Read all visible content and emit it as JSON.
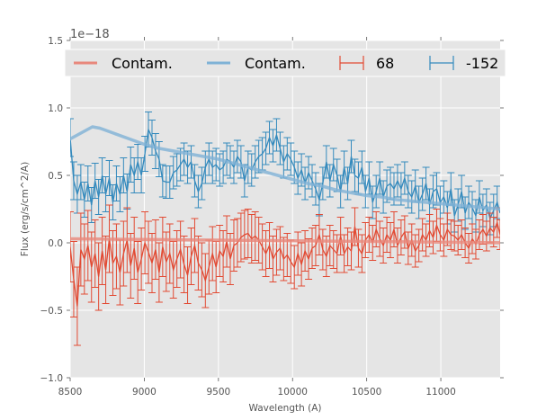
{
  "chart_data": {
    "type": "line",
    "title": "",
    "xlabel": "Wavelength (A)",
    "ylabel": "Flux (erg/s/cm^2/A)",
    "y_offset_label": "1e−18",
    "xlim": [
      8500,
      11400
    ],
    "ylim": [
      -1.0,
      1.5
    ],
    "x_ticks": [
      8500,
      9000,
      9500,
      10000,
      10500,
      11000
    ],
    "x_tick_labels": [
      "8500",
      "9000",
      "9500",
      "10000",
      "10500",
      "11000"
    ],
    "y_ticks": [
      -1.0,
      -0.5,
      0.0,
      0.5,
      1.0,
      1.5
    ],
    "y_tick_labels": [
      "−1.0",
      "−0.5",
      "0.0",
      "0.5",
      "1.0",
      "1.5"
    ],
    "grid": true,
    "legend_position": "top",
    "legend": [
      {
        "label": "Contam.",
        "kind": "line",
        "color": "#e8887c"
      },
      {
        "label": "Contam.",
        "kind": "line",
        "color": "#7fb2d6"
      },
      {
        "label": "68",
        "kind": "errorbar",
        "color": "#e24a33"
      },
      {
        "label": "-152",
        "kind": "errorbar",
        "color": "#348abd"
      }
    ],
    "colors": {
      "axes_bg": "#e5e5e5",
      "grid": "#ffffff",
      "red": "#e24a33",
      "blue": "#348abd",
      "red_contam": "#e8887c",
      "blue_contam": "#7fb2d6",
      "legend_bg": "#e5e5e5"
    },
    "series": [
      {
        "name": "Contam. (68)",
        "kind": "line",
        "x": [
          8500,
          8700,
          8900,
          9100,
          9300,
          9500,
          9700,
          9900,
          10100,
          10300,
          10500,
          10700,
          10900,
          11100,
          11300,
          11400
        ],
        "y": [
          0.03,
          0.028,
          0.026,
          0.024,
          0.022,
          0.02,
          0.018,
          0.016,
          0.014,
          0.012,
          0.01,
          0.008,
          0.006,
          0.004,
          0.002,
          0.001
        ]
      },
      {
        "name": "Contam. (-152)",
        "kind": "line",
        "x": [
          8500,
          8550,
          8600,
          8650,
          8700,
          8750,
          8800,
          8900,
          9000,
          9100,
          9200,
          9300,
          9400,
          9500,
          9600,
          9700,
          9800,
          9900,
          10000,
          10100,
          10200,
          10300,
          10400,
          10500,
          10600,
          10700,
          10800,
          10900,
          11000,
          11100,
          11200,
          11300,
          11400
        ],
        "y": [
          0.77,
          0.8,
          0.83,
          0.86,
          0.85,
          0.83,
          0.81,
          0.77,
          0.73,
          0.7,
          0.68,
          0.66,
          0.64,
          0.62,
          0.59,
          0.56,
          0.53,
          0.5,
          0.47,
          0.44,
          0.42,
          0.39,
          0.37,
          0.35,
          0.34,
          0.32,
          0.31,
          0.3,
          0.29,
          0.28,
          0.27,
          0.26,
          0.25
        ]
      },
      {
        "name": "68",
        "kind": "errorbar",
        "x": [
          8500,
          8524,
          8548,
          8572,
          8596,
          8620,
          8644,
          8668,
          8692,
          8716,
          8740,
          8764,
          8788,
          8812,
          8836,
          8860,
          8884,
          8908,
          8932,
          8956,
          8980,
          9004,
          9028,
          9052,
          9076,
          9100,
          9124,
          9148,
          9172,
          9196,
          9220,
          9244,
          9268,
          9292,
          9316,
          9340,
          9364,
          9388,
          9412,
          9436,
          9460,
          9484,
          9508,
          9532,
          9556,
          9580,
          9604,
          9628,
          9652,
          9676,
          9700,
          9724,
          9748,
          9772,
          9796,
          9820,
          9844,
          9868,
          9892,
          9916,
          9940,
          9964,
          9988,
          10012,
          10036,
          10060,
          10084,
          10108,
          10132,
          10156,
          10180,
          10204,
          10228,
          10252,
          10276,
          10300,
          10324,
          10348,
          10372,
          10396,
          10420,
          10444,
          10468,
          10492,
          10516,
          10540,
          10564,
          10588,
          10612,
          10636,
          10660,
          10684,
          10708,
          10732,
          10756,
          10780,
          10804,
          10828,
          10852,
          10876,
          10900,
          10924,
          10948,
          10972,
          10996,
          11020,
          11044,
          11068,
          11092,
          11116,
          11140,
          11164,
          11188,
          11212,
          11236,
          11260,
          11284,
          11308,
          11332,
          11356,
          11380,
          11400
        ],
        "y": [
          -0.03,
          -0.27,
          -0.47,
          -0.05,
          -0.12,
          -0.02,
          -0.18,
          -0.08,
          -0.25,
          -0.06,
          -0.2,
          0.03,
          -0.15,
          -0.1,
          -0.22,
          -0.08,
          0.02,
          -0.17,
          -0.04,
          -0.22,
          -0.12,
          0.0,
          -0.07,
          -0.15,
          -0.05,
          -0.22,
          -0.03,
          -0.14,
          -0.08,
          -0.2,
          -0.12,
          -0.05,
          -0.16,
          -0.24,
          -0.1,
          -0.02,
          -0.15,
          -0.2,
          -0.28,
          -0.18,
          -0.08,
          -0.18,
          -0.06,
          -0.1,
          0.01,
          -0.12,
          -0.02,
          0.0,
          0.04,
          0.06,
          0.07,
          0.03,
          0.05,
          0.02,
          -0.03,
          -0.08,
          -0.02,
          -0.12,
          -0.07,
          -0.04,
          -0.12,
          -0.09,
          -0.14,
          -0.18,
          -0.08,
          -0.16,
          -0.06,
          -0.12,
          -0.04,
          -0.02,
          0.06,
          -0.05,
          -0.1,
          -0.02,
          -0.05,
          -0.08,
          0.05,
          -0.08,
          -0.03,
          -0.06,
          0.12,
          -0.04,
          -0.08,
          0.02,
          0.06,
          0.0,
          0.1,
          0.03,
          -0.02,
          0.06,
          0.02,
          0.1,
          -0.02,
          0.04,
          0.08,
          -0.04,
          0.02,
          -0.06,
          -0.02,
          0.06,
          0.02,
          0.09,
          0.04,
          0.13,
          0.06,
          0.02,
          0.1,
          0.06,
          0.05,
          0.02,
          0.06,
          0.0,
          -0.04,
          0.03,
          -0.01,
          0.06,
          0.1,
          0.05,
          0.11,
          0.08,
          0.15,
          0.06
        ],
        "yerr": [
          0.26,
          0.28,
          0.29,
          0.27,
          0.26,
          0.26,
          0.26,
          0.25,
          0.25,
          0.25,
          0.25,
          0.25,
          0.24,
          0.24,
          0.24,
          0.24,
          0.24,
          0.24,
          0.23,
          0.23,
          0.23,
          0.23,
          0.23,
          0.22,
          0.22,
          0.22,
          0.22,
          0.22,
          0.22,
          0.21,
          0.21,
          0.21,
          0.21,
          0.21,
          0.21,
          0.2,
          0.2,
          0.2,
          0.2,
          0.2,
          0.2,
          0.19,
          0.19,
          0.19,
          0.19,
          0.19,
          0.19,
          0.18,
          0.18,
          0.18,
          0.18,
          0.18,
          0.18,
          0.17,
          0.17,
          0.17,
          0.17,
          0.17,
          0.17,
          0.16,
          0.16,
          0.16,
          0.16,
          0.16,
          0.16,
          0.16,
          0.15,
          0.15,
          0.15,
          0.15,
          0.15,
          0.15,
          0.15,
          0.15,
          0.14,
          0.14,
          0.14,
          0.14,
          0.14,
          0.14,
          0.14,
          0.14,
          0.14,
          0.13,
          0.13,
          0.13,
          0.13,
          0.13,
          0.13,
          0.13,
          0.13,
          0.13,
          0.13,
          0.13,
          0.12,
          0.12,
          0.12,
          0.12,
          0.12,
          0.12,
          0.12,
          0.12,
          0.12,
          0.12,
          0.12,
          0.12,
          0.12,
          0.11,
          0.11,
          0.11,
          0.11,
          0.11,
          0.11,
          0.11,
          0.11,
          0.11,
          0.11,
          0.11,
          0.11,
          0.11,
          0.11,
          0.11
        ]
      },
      {
        "name": "-152",
        "kind": "errorbar",
        "x": [
          8500,
          8524,
          8548,
          8572,
          8596,
          8620,
          8644,
          8668,
          8692,
          8716,
          8740,
          8764,
          8788,
          8812,
          8836,
          8860,
          8884,
          8908,
          8932,
          8956,
          8980,
          9004,
          9028,
          9052,
          9076,
          9100,
          9124,
          9148,
          9172,
          9196,
          9220,
          9244,
          9268,
          9292,
          9316,
          9340,
          9364,
          9388,
          9412,
          9436,
          9460,
          9484,
          9508,
          9532,
          9556,
          9580,
          9604,
          9628,
          9652,
          9676,
          9700,
          9724,
          9748,
          9772,
          9796,
          9820,
          9844,
          9868,
          9892,
          9916,
          9940,
          9964,
          9988,
          10012,
          10036,
          10060,
          10084,
          10108,
          10132,
          10156,
          10180,
          10204,
          10228,
          10252,
          10276,
          10300,
          10324,
          10348,
          10372,
          10396,
          10420,
          10444,
          10468,
          10492,
          10516,
          10540,
          10564,
          10588,
          10612,
          10636,
          10660,
          10684,
          10708,
          10732,
          10756,
          10780,
          10804,
          10828,
          10852,
          10876,
          10900,
          10924,
          10948,
          10972,
          10996,
          11020,
          11044,
          11068,
          11092,
          11116,
          11140,
          11164,
          11188,
          11212,
          11236,
          11260,
          11284,
          11308,
          11332,
          11356,
          11380,
          11400
        ],
        "y": [
          0.78,
          0.46,
          0.36,
          0.45,
          0.32,
          0.44,
          0.28,
          0.46,
          0.34,
          0.5,
          0.36,
          0.48,
          0.3,
          0.44,
          0.36,
          0.5,
          0.38,
          0.58,
          0.5,
          0.6,
          0.5,
          0.66,
          0.84,
          0.78,
          0.68,
          0.62,
          0.46,
          0.45,
          0.45,
          0.52,
          0.54,
          0.58,
          0.62,
          0.56,
          0.6,
          0.46,
          0.38,
          0.44,
          0.56,
          0.62,
          0.56,
          0.58,
          0.54,
          0.56,
          0.62,
          0.6,
          0.56,
          0.64,
          0.6,
          0.46,
          0.56,
          0.54,
          0.6,
          0.64,
          0.66,
          0.7,
          0.78,
          0.72,
          0.8,
          0.7,
          0.6,
          0.66,
          0.62,
          0.56,
          0.48,
          0.54,
          0.44,
          0.52,
          0.46,
          0.4,
          0.32,
          0.44,
          0.6,
          0.46,
          0.58,
          0.5,
          0.38,
          0.56,
          0.44,
          0.64,
          0.5,
          0.48,
          0.56,
          0.38,
          0.48,
          0.3,
          0.38,
          0.48,
          0.34,
          0.42,
          0.44,
          0.4,
          0.46,
          0.4,
          0.48,
          0.38,
          0.34,
          0.42,
          0.3,
          0.36,
          0.44,
          0.28,
          0.38,
          0.4,
          0.3,
          0.34,
          0.26,
          0.4,
          0.2,
          0.28,
          0.38,
          0.22,
          0.3,
          0.26,
          0.2,
          0.34,
          0.24,
          0.28,
          0.18,
          0.24,
          0.3,
          0.22
        ],
        "yerr": [
          0.14,
          0.14,
          0.14,
          0.13,
          0.13,
          0.13,
          0.13,
          0.13,
          0.13,
          0.13,
          0.13,
          0.13,
          0.13,
          0.13,
          0.13,
          0.13,
          0.13,
          0.13,
          0.13,
          0.13,
          0.13,
          0.13,
          0.13,
          0.13,
          0.13,
          0.13,
          0.12,
          0.12,
          0.12,
          0.12,
          0.12,
          0.12,
          0.12,
          0.12,
          0.12,
          0.12,
          0.12,
          0.12,
          0.12,
          0.12,
          0.12,
          0.12,
          0.12,
          0.12,
          0.12,
          0.12,
          0.12,
          0.12,
          0.12,
          0.12,
          0.12,
          0.12,
          0.12,
          0.12,
          0.12,
          0.12,
          0.12,
          0.12,
          0.12,
          0.12,
          0.12,
          0.12,
          0.12,
          0.12,
          0.12,
          0.12,
          0.12,
          0.12,
          0.12,
          0.12,
          0.12,
          0.12,
          0.12,
          0.12,
          0.12,
          0.12,
          0.12,
          0.12,
          0.12,
          0.12,
          0.12,
          0.12,
          0.12,
          0.12,
          0.12,
          0.12,
          0.12,
          0.12,
          0.12,
          0.12,
          0.12,
          0.12,
          0.12,
          0.12,
          0.12,
          0.12,
          0.12,
          0.12,
          0.12,
          0.12,
          0.12,
          0.12,
          0.12,
          0.12,
          0.12,
          0.12,
          0.12,
          0.12,
          0.12,
          0.12,
          0.12,
          0.12,
          0.12,
          0.12,
          0.12,
          0.12,
          0.12,
          0.12,
          0.12,
          0.12,
          0.12
        ]
      }
    ]
  }
}
